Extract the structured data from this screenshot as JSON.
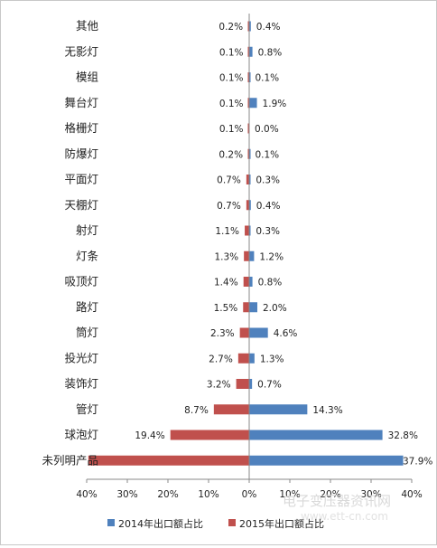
{
  "chart_data": {
    "type": "bar",
    "orientation": "horizontal-diverging",
    "categories": [
      "其他",
      "无影灯",
      "模组",
      "舞台灯",
      "格栅灯",
      "防爆灯",
      "平面灯",
      "天棚灯",
      "射灯",
      "灯条",
      "吸顶灯",
      "路灯",
      "筒灯",
      "投光灯",
      "装饰灯",
      "管灯",
      "球泡灯",
      "未列明产品"
    ],
    "series": [
      {
        "name": "2014年出口额占比",
        "color": "#4f81bd",
        "side": "right",
        "values": [
          0.4,
          0.8,
          0.1,
          1.9,
          0.0,
          0.1,
          0.3,
          0.4,
          0.3,
          1.2,
          0.8,
          2.0,
          4.6,
          1.3,
          0.7,
          14.3,
          32.8,
          37.9
        ],
        "labels": [
          "0.4%",
          "0.8%",
          "0.1%",
          "1.9%",
          "0.0%",
          "0.1%",
          "0.3%",
          "0.4%",
          "0.3%",
          "1.2%",
          "0.8%",
          "2.0%",
          "4.6%",
          "1.3%",
          "0.7%",
          "14.3%",
          "32.8%",
          "37.9%"
        ]
      },
      {
        "name": "2015年出口额占比",
        "color": "#c0504d",
        "side": "left",
        "values": [
          0.2,
          0.1,
          0.1,
          0.1,
          0.1,
          0.2,
          0.7,
          0.7,
          1.1,
          1.3,
          1.4,
          1.5,
          2.3,
          2.7,
          3.2,
          8.7,
          19.4,
          39.6
        ],
        "labels": [
          "0.2%",
          "0.1%",
          "0.1%",
          "0.1%",
          "0.1%",
          "0.2%",
          "0.7%",
          "0.7%",
          "1.1%",
          "1.3%",
          "1.4%",
          "1.5%",
          "2.3%",
          "2.7%",
          "3.2%",
          "8.7%",
          "19.4%",
          ""
        ]
      }
    ],
    "xlim": [
      -40,
      40
    ],
    "xticks": [
      -40,
      -30,
      -20,
      -10,
      0,
      10,
      20,
      30,
      40
    ],
    "xtick_labels": [
      "40%",
      "30%",
      "20%",
      "10%",
      "0%",
      "10%",
      "20%",
      "30%",
      "40%"
    ],
    "grid": false,
    "legend_position": "bottom",
    "watermark": {
      "text": "电子变压器资讯网",
      "url": "www.ett-cn.com"
    }
  }
}
